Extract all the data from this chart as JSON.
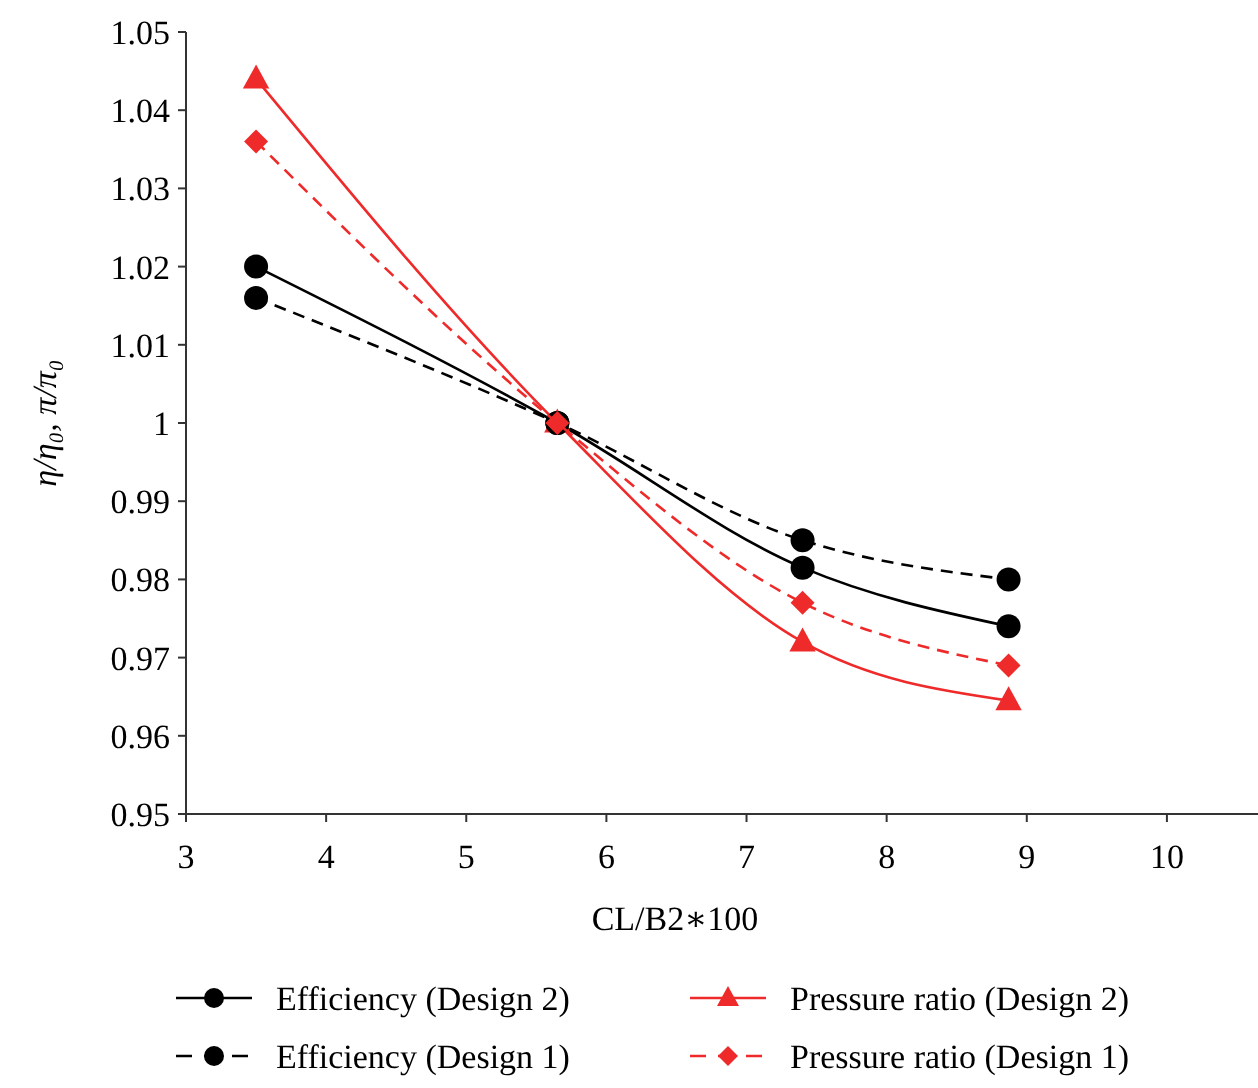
{
  "chart_data": {
    "type": "line",
    "xlabel": "CL/B2∗100",
    "ylabel": "η/η₀, π/π₀",
    "x": [
      3.5,
      5.65,
      7.4,
      8.87
    ],
    "xlim": [
      3,
      10.65
    ],
    "xticks": [
      3,
      4,
      5,
      6,
      7,
      8,
      9,
      10
    ],
    "ylim": [
      0.95,
      1.05
    ],
    "yticks": [
      0.95,
      0.96,
      0.97,
      0.98,
      0.99,
      {
        "value": 1,
        "label": "1"
      },
      1.01,
      1.02,
      1.03,
      1.04,
      1.05
    ],
    "grid": false,
    "legend": "bottom",
    "series": [
      {
        "name": "Efficiency (Design 2)",
        "color": "#000000",
        "marker": "circle",
        "line_style": "solid",
        "values": [
          1.02,
          1.0,
          0.9815,
          0.974
        ]
      },
      {
        "name": "Pressure ratio (Design 2)",
        "color": "#ee2a2a",
        "marker": "triangle",
        "line_style": "solid",
        "values": [
          1.044,
          1.0,
          0.972,
          0.9645
        ]
      },
      {
        "name": "Efficiency (Design 1)",
        "color": "#000000",
        "marker": "circle",
        "line_style": "dashed",
        "values": [
          1.016,
          1.0,
          0.985,
          0.98
        ]
      },
      {
        "name": "Pressure ratio (Design 1)",
        "color": "#ee2a2a",
        "marker": "diamond",
        "line_style": "dashed",
        "values": [
          1.036,
          1.0,
          0.977,
          0.969
        ]
      }
    ]
  }
}
